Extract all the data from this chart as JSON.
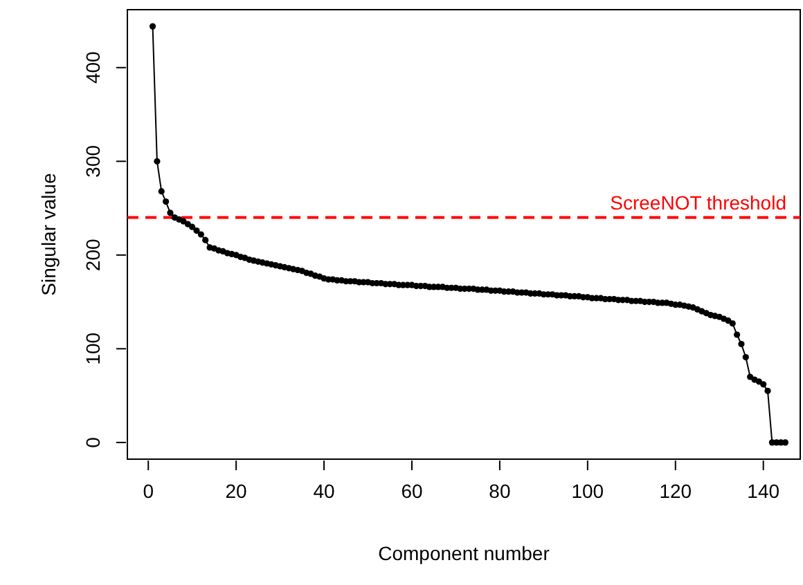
{
  "chart_data": {
    "type": "line",
    "xlabel": "Component number",
    "ylabel": "Singular value",
    "marker": "circle",
    "line_style": "solid",
    "xlim": [
      -4.76,
      148.4
    ],
    "ylim": [
      -17.8,
      461.8
    ],
    "xticks": [
      0,
      20,
      40,
      60,
      80,
      100,
      120,
      140
    ],
    "yticks": [
      0,
      100,
      200,
      300,
      400
    ],
    "x": [
      1,
      2,
      3,
      4,
      5,
      6,
      7,
      8,
      9,
      10,
      11,
      12,
      13,
      14,
      15,
      16,
      17,
      18,
      19,
      20,
      21,
      22,
      23,
      24,
      25,
      26,
      27,
      28,
      29,
      30,
      31,
      32,
      33,
      34,
      35,
      36,
      37,
      38,
      39,
      40,
      41,
      42,
      43,
      44,
      45,
      46,
      47,
      48,
      49,
      50,
      51,
      52,
      53,
      54,
      55,
      56,
      57,
      58,
      59,
      60,
      61,
      62,
      63,
      64,
      65,
      66,
      67,
      68,
      69,
      70,
      71,
      72,
      73,
      74,
      75,
      76,
      77,
      78,
      79,
      80,
      81,
      82,
      83,
      84,
      85,
      86,
      87,
      88,
      89,
      90,
      91,
      92,
      93,
      94,
      95,
      96,
      97,
      98,
      99,
      100,
      101,
      102,
      103,
      104,
      105,
      106,
      107,
      108,
      109,
      110,
      111,
      112,
      113,
      114,
      115,
      116,
      117,
      118,
      119,
      120,
      121,
      122,
      123,
      124,
      125,
      126,
      127,
      128,
      129,
      130,
      131,
      132,
      133,
      134,
      135,
      136,
      137,
      138,
      139,
      140,
      141,
      142,
      143,
      144,
      145
    ],
    "series": [
      {
        "color": "#000000",
        "values": [
          444,
          300,
          268,
          257,
          245,
          240,
          238,
          236,
          233,
          230,
          226,
          222,
          216,
          208,
          207,
          205,
          204,
          202,
          201,
          200,
          198,
          197,
          195,
          194,
          193,
          192,
          191,
          190,
          189,
          188,
          187,
          186,
          185,
          184,
          183,
          181,
          180,
          178,
          177,
          175,
          174,
          174,
          173,
          173,
          172,
          172,
          172,
          171,
          171,
          171,
          170,
          170,
          170,
          169,
          169,
          169,
          168,
          168,
          168,
          168,
          167,
          167,
          167,
          166,
          166,
          166,
          166,
          165,
          165,
          165,
          164,
          164,
          164,
          164,
          163,
          163,
          163,
          162,
          162,
          162,
          161,
          161,
          161,
          160,
          160,
          160,
          159,
          159,
          159,
          158,
          158,
          158,
          157,
          157,
          157,
          156,
          156,
          156,
          155,
          155,
          154,
          154,
          154,
          153,
          153,
          153,
          152,
          152,
          152,
          151,
          151,
          151,
          150,
          150,
          150,
          149,
          149,
          149,
          148,
          147,
          147,
          146,
          145,
          144,
          142,
          140,
          138,
          136,
          135,
          134,
          132,
          130,
          127,
          115,
          105,
          91,
          70,
          67,
          65,
          62,
          55,
          0,
          0,
          0,
          0
        ]
      }
    ],
    "ref_lines": [
      {
        "axis": "y",
        "value": 240,
        "label": "ScreeNOT threshold",
        "color": "#ff0000",
        "line_style": "dashed"
      }
    ]
  }
}
